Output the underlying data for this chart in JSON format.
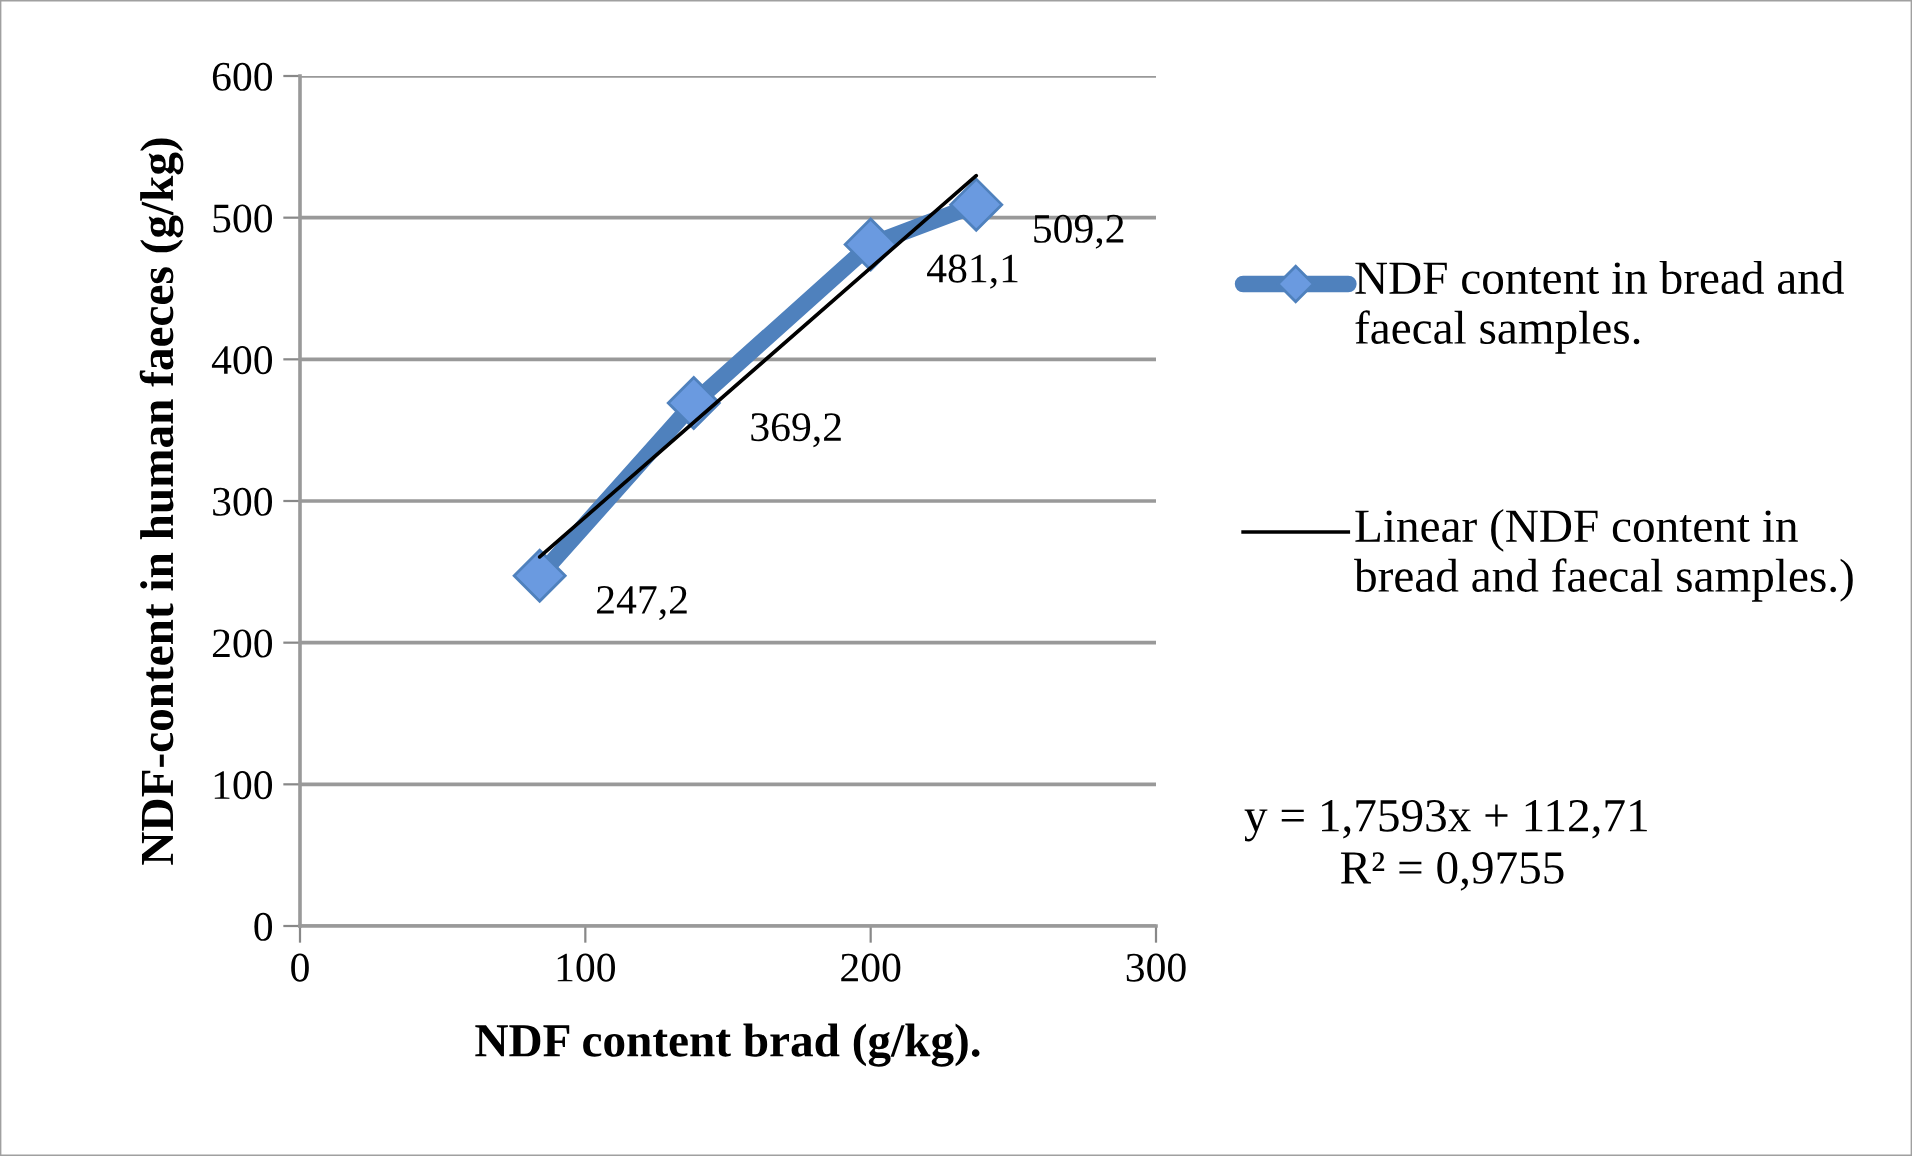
{
  "chart_data": {
    "type": "line",
    "xlabel": "NDF content brad (g/kg).",
    "ylabel": "NDF-content in human faeces (g/kg)",
    "xlim": [
      0,
      300
    ],
    "xticks": [
      0,
      100,
      200,
      300
    ],
    "ylim": [
      0,
      600
    ],
    "yticks": [
      0,
      100,
      200,
      300,
      400,
      500,
      600
    ],
    "grid": "y",
    "legend": "right",
    "marker": "diamond",
    "series": [
      {
        "name": "NDF content in bread and faecal samples.",
        "color": "#4f81bd",
        "x": [
          84,
          138,
          200,
          237
        ],
        "values": [
          247.2,
          369.2,
          481.1,
          509.2
        ],
        "value_labels": [
          "247,2",
          "369,2",
          "481,1",
          "509,2"
        ]
      },
      {
        "name": "Linear (NDF content in bread and faecal samples.)",
        "color": "#000000",
        "type": "line",
        "marker": "none",
        "x": [
          84,
          237
        ],
        "values": [
          260.5,
          529.7
        ]
      }
    ],
    "annotations": [
      "y = 1,7593x + 112,71",
      "R² = 0,9755"
    ]
  }
}
